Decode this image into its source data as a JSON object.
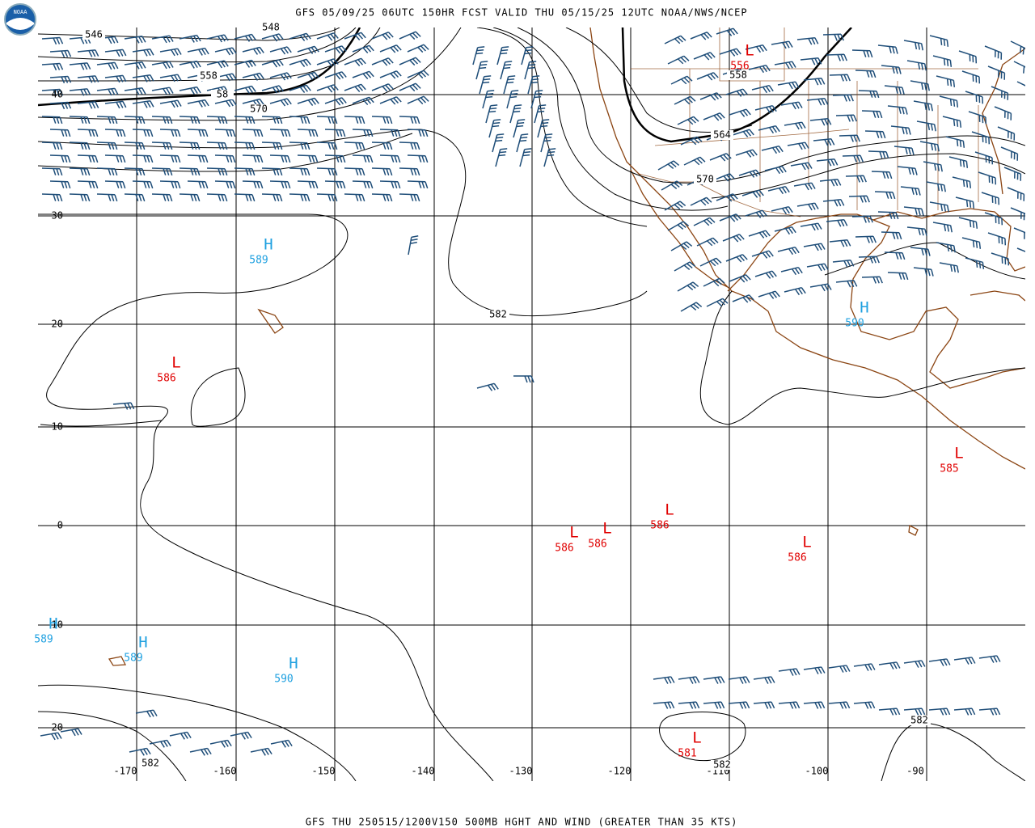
{
  "header": {
    "title": "GFS 05/09/25 06UTC 150HR FCST VALID THU 05/15/25 12UTC NOAA/NWS/NCEP",
    "logo": "NOAA"
  },
  "footer": {
    "text": "GFS THU 250515/1200V150 500MB HGHT AND WIND (GREATER THAN 35 KTS)"
  },
  "lat_labels": [
    "40",
    "30",
    "20",
    "10",
    "0",
    "-10",
    "-20"
  ],
  "lon_labels": [
    "-170",
    "-160",
    "-150",
    "-140",
    "-130",
    "-120",
    "-110",
    "-100",
    "-90"
  ],
  "contour_labels": [
    "546",
    "548",
    "558",
    "58",
    "570",
    "582",
    "558",
    "564",
    "570",
    "582",
    "582",
    "582"
  ],
  "highs": [
    {
      "letter": "H",
      "value": "589"
    },
    {
      "letter": "H",
      "value": "590"
    },
    {
      "letter": "H",
      "value": "589"
    },
    {
      "letter": "H",
      "value": "589"
    },
    {
      "letter": "H",
      "value": "590"
    }
  ],
  "lows": [
    {
      "letter": "L",
      "value": "556"
    },
    {
      "letter": "L",
      "value": "586"
    },
    {
      "letter": "L",
      "value": "585"
    },
    {
      "letter": "L",
      "value": "586"
    },
    {
      "letter": "L",
      "value": "586"
    },
    {
      "letter": "L",
      "value": "586"
    },
    {
      "letter": "L",
      "value": "586"
    },
    {
      "letter": "L",
      "value": "581"
    }
  ]
}
